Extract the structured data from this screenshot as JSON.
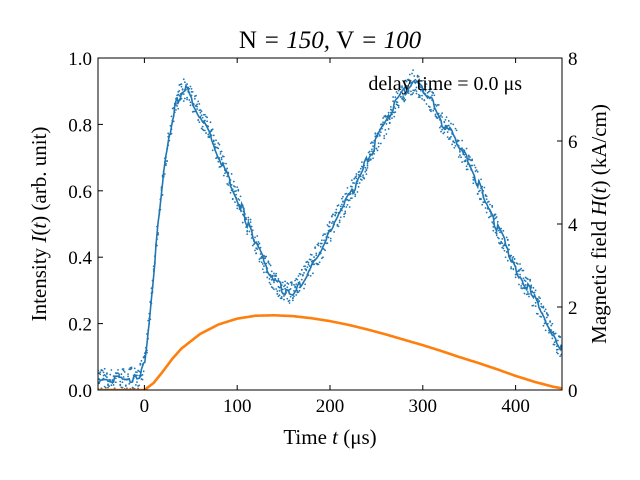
{
  "chart_data": {
    "type": "line",
    "title_parts": [
      "N",
      " = 150, ",
      "V",
      " = 100"
    ],
    "annotation": "delay time = 0.0 μs",
    "xlabel_parts": [
      "Time ",
      "t",
      " (μs)"
    ],
    "ylabel_left_parts": [
      "Intensity ",
      "I",
      "(",
      "t",
      ") (arb. unit)"
    ],
    "ylabel_right_parts": [
      "Magnetic field ",
      "H",
      "(",
      "t",
      ") (kA/cm)"
    ],
    "xlim": [
      -50,
      450
    ],
    "ylim_left": [
      0,
      1.0
    ],
    "ylim_right": [
      0,
      8
    ],
    "xticks": [
      0,
      100,
      200,
      300,
      400
    ],
    "xtick_labels": [
      "0",
      "100",
      "200",
      "300",
      "400"
    ],
    "yticks_left": [
      0.0,
      0.2,
      0.4,
      0.6,
      0.8,
      1.0
    ],
    "ytick_labels_left": [
      "0.0",
      "0.2",
      "0.4",
      "0.6",
      "0.8",
      "1.0"
    ],
    "yticks_right": [
      0,
      2,
      4,
      6,
      8
    ],
    "ytick_labels_right": [
      "0",
      "2",
      "4",
      "6",
      "8"
    ],
    "colors": {
      "intensity": "#1f77b4",
      "field": "#ff7f0e",
      "axes": "#000000"
    },
    "series": [
      {
        "axis": "left",
        "style": "line+scatter",
        "x": [
          -50,
          -20,
          -5,
          0,
          5,
          10,
          15,
          20,
          25,
          30,
          35,
          40,
          45,
          50,
          60,
          70,
          80,
          90,
          100,
          110,
          120,
          130,
          140,
          150,
          160,
          170,
          180,
          190,
          200,
          210,
          220,
          230,
          240,
          250,
          260,
          270,
          280,
          290,
          300,
          310,
          320,
          330,
          340,
          350,
          360,
          370,
          380,
          390,
          400,
          410,
          420,
          430,
          440,
          450
        ],
        "y": [
          0.03,
          0.03,
          0.04,
          0.08,
          0.2,
          0.35,
          0.5,
          0.63,
          0.73,
          0.82,
          0.87,
          0.9,
          0.91,
          0.88,
          0.83,
          0.78,
          0.71,
          0.64,
          0.58,
          0.51,
          0.44,
          0.38,
          0.33,
          0.3,
          0.29,
          0.33,
          0.38,
          0.42,
          0.48,
          0.53,
          0.58,
          0.63,
          0.69,
          0.75,
          0.8,
          0.86,
          0.9,
          0.93,
          0.9,
          0.87,
          0.81,
          0.78,
          0.73,
          0.68,
          0.62,
          0.55,
          0.49,
          0.43,
          0.37,
          0.32,
          0.28,
          0.22,
          0.17,
          0.12
        ]
      },
      {
        "axis": "right",
        "style": "line",
        "x": [
          -50,
          -10,
          0,
          10,
          20,
          30,
          40,
          60,
          80,
          100,
          120,
          140,
          160,
          180,
          200,
          220,
          240,
          260,
          280,
          300,
          320,
          340,
          360,
          380,
          400,
          420,
          440,
          450
        ],
        "y": [
          0,
          0,
          0,
          0.17,
          0.45,
          0.75,
          1.0,
          1.35,
          1.58,
          1.72,
          1.79,
          1.8,
          1.78,
          1.73,
          1.66,
          1.57,
          1.46,
          1.34,
          1.21,
          1.08,
          0.94,
          0.79,
          0.65,
          0.5,
          0.34,
          0.2,
          0.08,
          0.04
        ]
      }
    ]
  }
}
